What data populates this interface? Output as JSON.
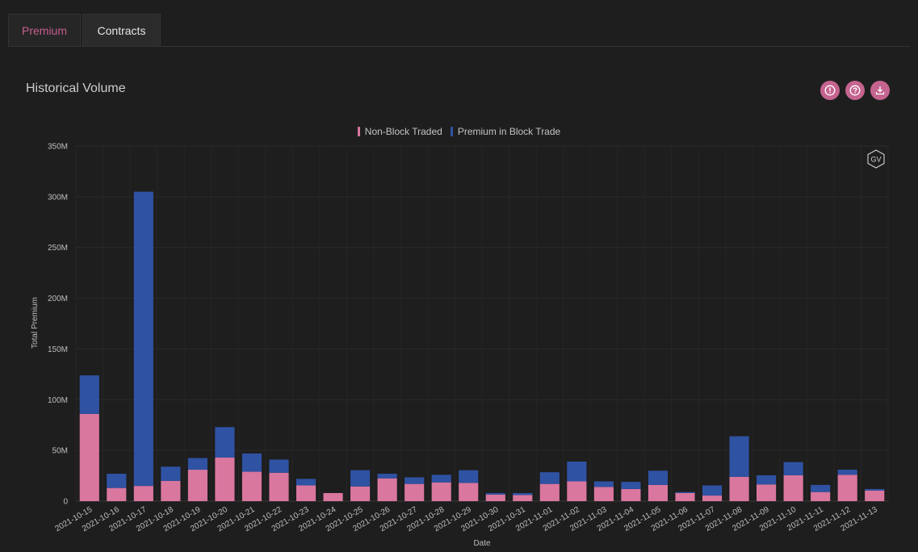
{
  "tabs": [
    {
      "label": "Premium",
      "active": true
    },
    {
      "label": "Contracts",
      "active": false
    }
  ],
  "header": {
    "title": "Historical Volume",
    "icons": [
      "info-icon",
      "help-icon",
      "download-icon"
    ]
  },
  "watermark": "GV",
  "colors": {
    "accent": "#c4648f",
    "non_block": "#d9779f",
    "block": "#2f52a3",
    "background": "#1e1e1e"
  },
  "chart_data": {
    "type": "bar",
    "stacked": true,
    "xlabel": "Date",
    "ylabel": "Total Premium",
    "ylim": [
      0,
      350000000
    ],
    "yticks": [
      {
        "value": 0,
        "label": "0"
      },
      {
        "value": 50000000,
        "label": "50M"
      },
      {
        "value": 100000000,
        "label": "100M"
      },
      {
        "value": 150000000,
        "label": "150M"
      },
      {
        "value": 200000000,
        "label": "200M"
      },
      {
        "value": 250000000,
        "label": "250M"
      },
      {
        "value": 300000000,
        "label": "300M"
      },
      {
        "value": 350000000,
        "label": "350M"
      }
    ],
    "legend_position": "top-center",
    "grid": true,
    "categories": [
      "2021-10-15",
      "2021-10-16",
      "2021-10-17",
      "2021-10-18",
      "2021-10-19",
      "2021-10-20",
      "2021-10-21",
      "2021-10-22",
      "2021-10-23",
      "2021-10-24",
      "2021-10-25",
      "2021-10-26",
      "2021-10-27",
      "2021-10-28",
      "2021-10-29",
      "2021-10-30",
      "2021-10-31",
      "2021-11-01",
      "2021-11-02",
      "2021-11-03",
      "2021-11-04",
      "2021-11-05",
      "2021-11-06",
      "2021-11-07",
      "2021-11-08",
      "2021-11-09",
      "2021-11-10",
      "2021-11-11",
      "2021-11-12",
      "2021-11-13"
    ],
    "series": [
      {
        "name": "Non-Block Traded",
        "color": "#d9779f",
        "values": [
          86000000,
          13000000,
          15000000,
          20000000,
          31000000,
          43000000,
          29000000,
          28000000,
          15500000,
          8000000,
          14500000,
          22500000,
          17000000,
          18500000,
          18000000,
          6500000,
          6000000,
          17000000,
          19500000,
          14000000,
          12000000,
          16000000,
          8000000,
          5500000,
          24000000,
          16500000,
          25500000,
          9000000,
          26000000,
          10500000
        ]
      },
      {
        "name": "Premium in Block Trade",
        "color": "#2f52a3",
        "values": [
          38000000,
          14000000,
          290000000,
          14000000,
          11500000,
          30000000,
          18000000,
          13000000,
          6500000,
          0,
          16000000,
          4500000,
          6500000,
          7500000,
          12500000,
          1500000,
          2000000,
          11500000,
          19500000,
          5500000,
          7000000,
          14000000,
          1000000,
          10000000,
          40000000,
          9000000,
          13000000,
          7000000,
          5000000,
          1500000
        ]
      }
    ]
  }
}
